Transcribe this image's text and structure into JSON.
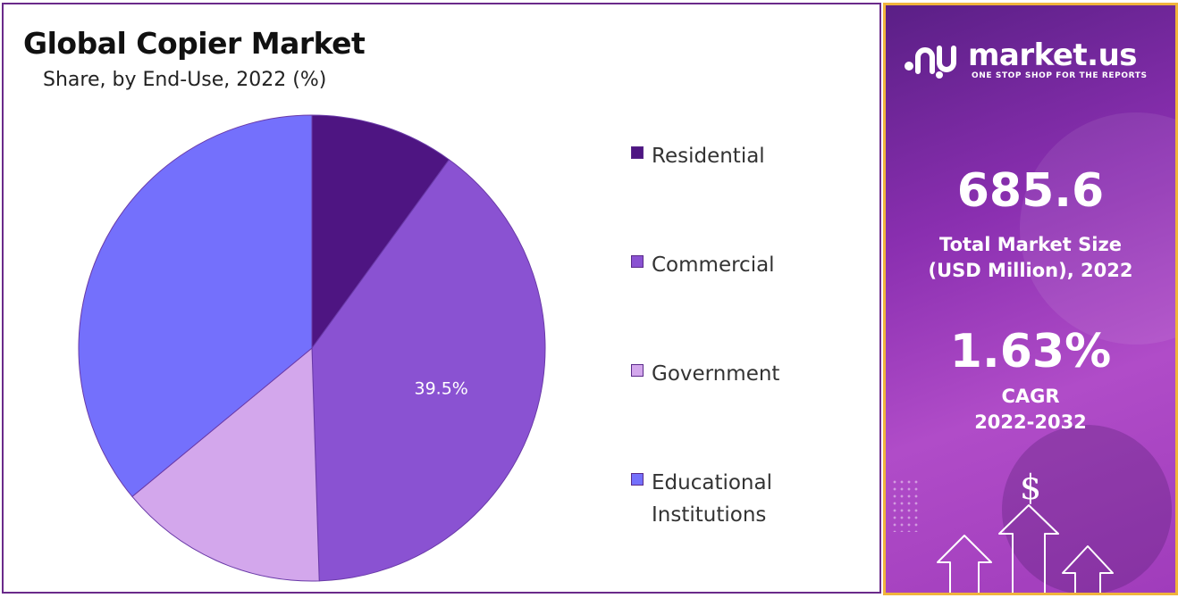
{
  "chart_data": {
    "type": "pie",
    "title": "Global Copier Market",
    "subtitle": "Share, by End-Use, 2022 (%)",
    "legend_position": "right",
    "slices": [
      {
        "label": "Residential",
        "value": 10.0,
        "color": "#4e1582",
        "data_label": ""
      },
      {
        "label": "Commercial",
        "value": 39.5,
        "color": "#8a52d2",
        "data_label": "39.5%"
      },
      {
        "label": "Government",
        "value": 14.5,
        "color": "#d3a7ec",
        "data_label": ""
      },
      {
        "label": "Educational\nInstitutions",
        "value": 36.0,
        "color": "#7470fc",
        "data_label": ""
      }
    ]
  },
  "side_panel": {
    "brand": "market.us",
    "tagline": "ONE STOP SHOP FOR THE REPORTS",
    "market_size_value": "685.6",
    "market_size_label": "Total Market Size\n (USD Million), 2022",
    "cagr_value": "1.63%",
    "cagr_label": "CAGR\n2022-2032",
    "icon": "dollar-icon",
    "dollar_symbol": "$"
  }
}
